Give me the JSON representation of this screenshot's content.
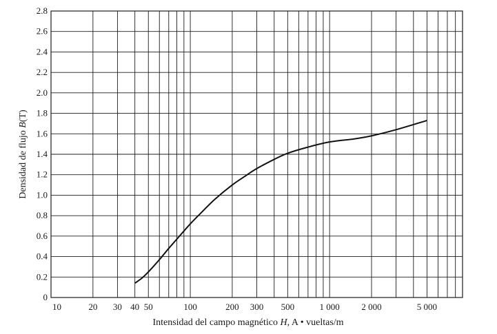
{
  "chart_data": {
    "type": "line",
    "title": "",
    "xlabel_parts": [
      "Intensidad del campo magnético ",
      "H",
      ",  A • vueltas/m"
    ],
    "ylabel_parts": [
      "Densidad de flujo ",
      "B",
      "(T)"
    ],
    "x_scale": "log",
    "xlim": [
      10,
      9000
    ],
    "ylim": [
      0,
      2.8
    ],
    "grid": true,
    "x_ticks": [
      10,
      20,
      30,
      40,
      50,
      100,
      200,
      300,
      500,
      1000,
      2000,
      5000
    ],
    "x_tick_labels": [
      "10",
      "20",
      "30",
      "40",
      "50",
      "100",
      "200",
      "300",
      "500",
      "1 000",
      "2 000",
      "5 000"
    ],
    "y_ticks": [
      0,
      0.2,
      0.4,
      0.6,
      0.8,
      1.0,
      1.2,
      1.4,
      1.6,
      1.8,
      2.0,
      2.2,
      2.4,
      2.6,
      2.8
    ],
    "y_tick_labels": [
      "0",
      "0.2",
      "0.4",
      "0.6",
      "0.8",
      "1.0",
      "1.2",
      "1.4",
      "1.6",
      "1.8",
      "2.0",
      "2.2",
      "2.4",
      "2.6",
      "2.8"
    ],
    "series": [
      {
        "x": [
          40,
          45,
          50,
          60,
          70,
          80,
          100,
          120,
          150,
          200,
          250,
          300,
          400,
          500,
          700,
          1000,
          1500,
          2000,
          3000,
          5000
        ],
        "values": [
          0.14,
          0.19,
          0.25,
          0.37,
          0.48,
          0.57,
          0.72,
          0.83,
          0.96,
          1.1,
          1.19,
          1.26,
          1.35,
          1.41,
          1.47,
          1.52,
          1.55,
          1.58,
          1.64,
          1.73
        ]
      }
    ]
  }
}
